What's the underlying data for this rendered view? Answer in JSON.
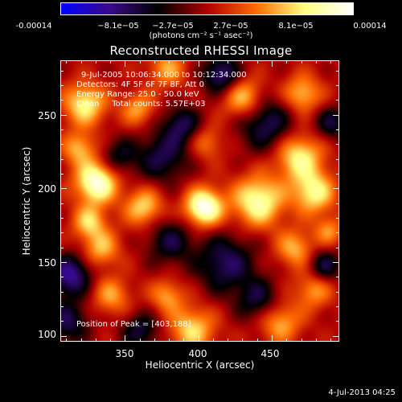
{
  "colorbar": {
    "tick_labels": [
      "-0.00014",
      "−8.1e−05",
      "−2.7e−05",
      "2.7e−05",
      "8.1e−05",
      "0.00014"
    ],
    "unit_label": "(photons cm⁻² s⁻¹ asec⁻²)",
    "range": [
      -0.00014,
      0.00014
    ],
    "colors": [
      "#0000ff",
      "#3a0a8a",
      "#000000",
      "#b00000",
      "#ff6a00",
      "#ffff80",
      "#ffffff"
    ]
  },
  "annotations": {
    "time_range": "9-Jul-2005 10:06:34.000 to 10:12:34.000",
    "detectors": "Detectors: 4F 5F 6F 7F 8F, Att 0",
    "energy": "Energy Range: 25.0 - 50.0 keV",
    "clean": "Clean     Total counts: 5.57E+03",
    "peak": "Position of Peak = [403,188]"
  },
  "footer": {
    "timestamp": "4-Jul-2013 04:25"
  },
  "chart_data": {
    "type": "heatmap",
    "title": "Reconstructed RHESSI Image",
    "xlabel": "Heliocentric X (arcsec)",
    "ylabel": "Heliocentric Y (arcsec)",
    "xlim": [
      306,
      496
    ],
    "ylim": [
      96,
      287
    ],
    "xticks": [
      350,
      400,
      450
    ],
    "yticks": [
      100,
      150,
      200,
      250
    ],
    "peak": [
      403,
      188
    ],
    "blobs": [
      {
        "x": 403,
        "y": 188,
        "v": 1.0,
        "s": 9
      },
      {
        "x": 330,
        "y": 205,
        "v": 0.95,
        "s": 10
      },
      {
        "x": 362,
        "y": 188,
        "v": 0.6,
        "s": 9
      },
      {
        "x": 440,
        "y": 192,
        "v": 0.8,
        "s": 12
      },
      {
        "x": 478,
        "y": 198,
        "v": 0.7,
        "s": 10
      },
      {
        "x": 468,
        "y": 222,
        "v": 0.7,
        "s": 11
      },
      {
        "x": 430,
        "y": 262,
        "v": 0.6,
        "s": 10
      },
      {
        "x": 470,
        "y": 265,
        "v": 0.55,
        "s": 9
      },
      {
        "x": 322,
        "y": 258,
        "v": 0.7,
        "s": 10
      },
      {
        "x": 358,
        "y": 255,
        "v": 0.45,
        "s": 8
      },
      {
        "x": 318,
        "y": 228,
        "v": 0.5,
        "s": 8
      },
      {
        "x": 325,
        "y": 178,
        "v": 0.55,
        "s": 8
      },
      {
        "x": 333,
        "y": 160,
        "v": 0.5,
        "s": 9
      },
      {
        "x": 340,
        "y": 128,
        "v": 0.45,
        "s": 9
      },
      {
        "x": 395,
        "y": 105,
        "v": 0.6,
        "s": 11
      },
      {
        "x": 378,
        "y": 128,
        "v": 0.45,
        "s": 8
      },
      {
        "x": 465,
        "y": 160,
        "v": 0.5,
        "s": 9
      },
      {
        "x": 488,
        "y": 172,
        "v": 0.4,
        "s": 7
      },
      {
        "x": 478,
        "y": 132,
        "v": 0.45,
        "s": 9
      },
      {
        "x": 455,
        "y": 110,
        "v": 0.5,
        "s": 10
      },
      {
        "x": 405,
        "y": 232,
        "v": 0.35,
        "s": 8
      },
      {
        "x": 378,
        "y": 282,
        "v": 0.45,
        "s": 9
      },
      {
        "x": 418,
        "y": 150,
        "v": -0.55,
        "s": 14
      },
      {
        "x": 380,
        "y": 165,
        "v": -0.45,
        "s": 11
      },
      {
        "x": 445,
        "y": 245,
        "v": -0.55,
        "s": 13
      },
      {
        "x": 375,
        "y": 222,
        "v": -0.5,
        "s": 12
      },
      {
        "x": 345,
        "y": 222,
        "v": -0.4,
        "s": 9
      },
      {
        "x": 312,
        "y": 142,
        "v": -0.7,
        "s": 10
      },
      {
        "x": 485,
        "y": 148,
        "v": -0.5,
        "s": 8
      },
      {
        "x": 415,
        "y": 278,
        "v": -0.65,
        "s": 9
      },
      {
        "x": 360,
        "y": 104,
        "v": -0.45,
        "s": 9
      },
      {
        "x": 440,
        "y": 125,
        "v": -0.45,
        "s": 10
      },
      {
        "x": 310,
        "y": 110,
        "v": -0.5,
        "s": 10
      },
      {
        "x": 490,
        "y": 245,
        "v": -0.45,
        "s": 8
      },
      {
        "x": 388,
        "y": 244,
        "v": -0.5,
        "s": 9
      }
    ]
  }
}
